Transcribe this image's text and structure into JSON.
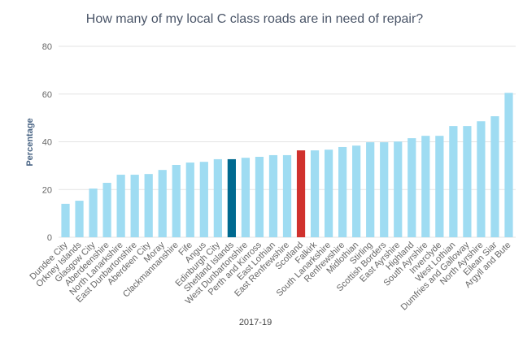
{
  "chart_data": {
    "type": "bar",
    "title": "How many of my local C class roads are in need of repair?",
    "y_label": "Percentage",
    "x_label": "2017-19",
    "categories": [
      "Dundee City",
      "Orkney Islands",
      "Glasgow City",
      "Aberdeenshire",
      "North Lanarkshire",
      "East Dunbartonshire",
      "Aberdeen City",
      "Moray",
      "Clackmannanshire",
      "Fife",
      "Angus",
      "Edinburgh City",
      "Shetland Islands",
      "West Dunbartonshire",
      "Perth and Kinross",
      "East Lothian",
      "East Renfrewshire",
      "Scotland",
      "Falkirk",
      "South Lanarkshire",
      "Renfrewshire",
      "Midlothian",
      "Stirling",
      "Scottish Borders",
      "East Ayrshire",
      "Highland",
      "South Ayrshire",
      "Inverclyde",
      "West Lothian",
      "Dumfries and Galloway",
      "North Ayrshire",
      "Eilean Siar",
      "Argyll and Bute"
    ],
    "values": [
      14.0,
      15.3,
      20.4,
      22.8,
      26.2,
      26.2,
      26.5,
      28.2,
      30.3,
      31.3,
      31.6,
      32.7,
      32.7,
      33.3,
      33.7,
      34.4,
      34.4,
      36.4,
      36.4,
      36.7,
      37.8,
      38.4,
      39.8,
      39.8,
      40.1,
      41.5,
      42.5,
      42.5,
      46.6,
      46.6,
      48.6,
      50.7,
      60.5
    ],
    "color": "#9fdcf2",
    "highlight_colors": {
      "12": "#00698f",
      "17": "#d0312d"
    },
    "ylim": [
      0,
      80
    ],
    "yticks": [
      0,
      20,
      40,
      60,
      80
    ],
    "grid": true
  }
}
